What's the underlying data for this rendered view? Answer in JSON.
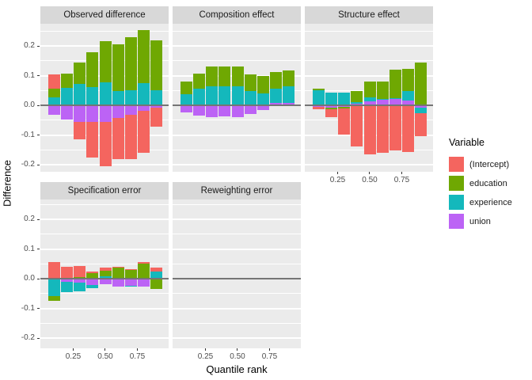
{
  "figure": {
    "y_axis_title": "Difference",
    "x_axis_title": "Quantile rank"
  },
  "axes": {
    "y_ticks": [
      {
        "label": "0.2",
        "value": 0.2
      },
      {
        "label": "0.1",
        "value": 0.1
      },
      {
        "label": "0.0",
        "value": 0.0
      },
      {
        "label": "-0.1",
        "value": -0.1
      },
      {
        "label": "-0.2",
        "value": -0.2
      }
    ],
    "x_ticks": [
      {
        "label": "0.25",
        "value": 0.25
      },
      {
        "label": "0.50",
        "value": 0.5
      },
      {
        "label": "0.75",
        "value": 0.75
      }
    ],
    "y_minor_ticks": [
      0.25,
      0.15,
      0.05,
      -0.05,
      -0.15,
      -0.25
    ],
    "ylim": [
      -0.235,
      0.275
    ],
    "grid": "on"
  },
  "legend": {
    "title": "Variable",
    "items": [
      {
        "label": "(Intercept)",
        "color": "#F4655F"
      },
      {
        "label": "education",
        "color": "#6FA802"
      },
      {
        "label": "experience",
        "color": "#14B8BC"
      },
      {
        "label": "union",
        "color": "#BC63F5"
      }
    ]
  },
  "colors": {
    "panel_background": "#EBEBEB",
    "strip_background": "#D8D8D8",
    "gridline": "#FFFFFF",
    "zero_line": "#757575"
  },
  "chart_data": [
    {
      "type": "bar",
      "stacked": true,
      "facet": "Observed difference",
      "x": [
        0.1,
        0.2,
        0.3,
        0.4,
        0.5,
        0.6,
        0.7,
        0.8,
        0.9
      ],
      "series": [
        {
          "name": "(Intercept)",
          "values": [
            0.046,
            0.0,
            -0.06,
            -0.12,
            -0.15,
            -0.14,
            -0.15,
            -0.14,
            -0.065
          ]
        },
        {
          "name": "education",
          "values": [
            0.03,
            0.05,
            0.071,
            0.119,
            0.14,
            0.157,
            0.178,
            0.178,
            0.17
          ]
        },
        {
          "name": "experience",
          "values": [
            0.027,
            0.058,
            0.073,
            0.061,
            0.077,
            0.048,
            0.052,
            0.075,
            0.05
          ]
        },
        {
          "name": "union",
          "values": [
            -0.031,
            -0.049,
            -0.055,
            -0.055,
            -0.055,
            -0.042,
            -0.031,
            -0.019,
            -0.007
          ]
        }
      ]
    },
    {
      "type": "bar",
      "stacked": true,
      "facet": "Composition effect",
      "x": [
        0.1,
        0.2,
        0.3,
        0.4,
        0.5,
        0.6,
        0.7,
        0.8,
        0.9
      ],
      "series": [
        {
          "name": "(Intercept)",
          "values": [
            0.0,
            0.0,
            0.0,
            0.0,
            0.0,
            0.0,
            0.0,
            0.0,
            0.0
          ]
        },
        {
          "name": "education",
          "values": [
            0.042,
            0.051,
            0.069,
            0.067,
            0.067,
            0.055,
            0.059,
            0.056,
            0.054
          ]
        },
        {
          "name": "experience",
          "values": [
            0.037,
            0.055,
            0.063,
            0.063,
            0.063,
            0.048,
            0.041,
            0.05,
            0.055
          ]
        },
        {
          "name": "union",
          "values": [
            -0.023,
            -0.034,
            -0.039,
            -0.037,
            -0.041,
            -0.028,
            -0.016,
            0.007,
            0.008
          ]
        }
      ]
    },
    {
      "type": "bar",
      "stacked": true,
      "facet": "Structure effect",
      "x": [
        0.1,
        0.2,
        0.3,
        0.4,
        0.5,
        0.6,
        0.7,
        0.8,
        0.9
      ],
      "series": [
        {
          "name": "(Intercept)",
          "values": [
            -0.008,
            -0.027,
            -0.088,
            -0.139,
            -0.165,
            -0.16,
            -0.152,
            -0.156,
            -0.078
          ]
        },
        {
          "name": "education",
          "values": [
            0.005,
            -0.006,
            -0.005,
            0.037,
            0.053,
            0.058,
            0.098,
            0.077,
            0.144
          ]
        },
        {
          "name": "experience",
          "values": [
            0.05,
            0.044,
            0.044,
            0.007,
            0.012,
            0.004,
            0.002,
            0.031,
            -0.018
          ]
        },
        {
          "name": "union",
          "values": [
            -0.005,
            -0.008,
            -0.006,
            0.005,
            0.014,
            0.018,
            0.021,
            0.016,
            -0.008
          ]
        }
      ]
    },
    {
      "type": "bar",
      "stacked": true,
      "facet": "Specification error",
      "x": [
        0.1,
        0.2,
        0.3,
        0.4,
        0.5,
        0.6,
        0.7,
        0.8,
        0.9
      ],
      "series": [
        {
          "name": "(Intercept)",
          "values": [
            0.057,
            0.04,
            0.038,
            0.004,
            0.01,
            0.003,
            0.003,
            0.006,
            0.012
          ]
        },
        {
          "name": "education",
          "values": [
            -0.016,
            0.0,
            0.005,
            0.02,
            0.021,
            0.034,
            0.03,
            0.047,
            -0.034
          ]
        },
        {
          "name": "experience",
          "values": [
            -0.057,
            -0.034,
            -0.031,
            -0.012,
            0.007,
            0.003,
            -0.003,
            0.003,
            0.025
          ]
        },
        {
          "name": "union",
          "values": [
            -0.002,
            -0.011,
            -0.012,
            -0.021,
            -0.018,
            -0.027,
            -0.024,
            -0.026,
            0.0
          ]
        }
      ]
    },
    {
      "type": "bar",
      "stacked": true,
      "facet": "Reweighting error",
      "x": [
        0.1,
        0.2,
        0.3,
        0.4,
        0.5,
        0.6,
        0.7,
        0.8,
        0.9
      ],
      "series": [
        {
          "name": "(Intercept)",
          "values": [
            0.0,
            0.0,
            0.0,
            0.0,
            0.0,
            0.0,
            0.0,
            0.0,
            0.0
          ]
        },
        {
          "name": "education",
          "values": [
            0.0,
            0.0,
            0.0,
            0.0,
            0.0,
            0.0,
            0.0,
            0.0,
            0.0
          ]
        },
        {
          "name": "experience",
          "values": [
            0.0,
            0.0,
            0.0,
            0.0,
            0.0,
            0.0,
            0.0,
            0.0,
            0.0
          ]
        },
        {
          "name": "union",
          "values": [
            0.0,
            0.0,
            0.0,
            0.0,
            0.0,
            0.0,
            0.0,
            0.0,
            0.0
          ]
        }
      ]
    }
  ]
}
